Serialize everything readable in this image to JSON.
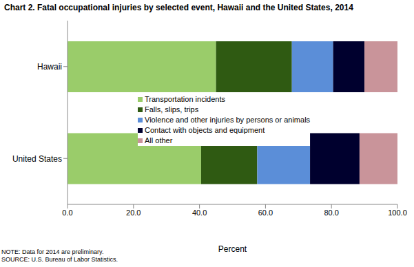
{
  "chart_data": {
    "type": "bar",
    "title": "Chart 2. Fatal occupational injuries by selected event, Hawaii and the United States, 2014",
    "orientation": "horizontal",
    "stacked": true,
    "grid": false,
    "legend": "center",
    "categories": [
      "Hawaii",
      "United States"
    ],
    "series": [
      {
        "name": "Transportation incidents",
        "color": "#9acc6a",
        "values": [
          45,
          40.5
        ]
      },
      {
        "name": "Falls, slips, trips",
        "color": "#2f5a12",
        "values": [
          23,
          17
        ]
      },
      {
        "name": "Violence and other injuries by persons or animals",
        "color": "#5b8ed8",
        "values": [
          12.5,
          16
        ]
      },
      {
        "name": "Contact with objects and equipment",
        "color": "#00002e",
        "values": [
          9.5,
          15
        ]
      },
      {
        "name": "All other",
        "color": "#c9949a",
        "values": [
          10,
          11.5
        ]
      }
    ],
    "x_label": "Percent",
    "xlim": [
      0,
      100
    ],
    "xticks": [
      {
        "value": 0,
        "label": "0.0"
      },
      {
        "value": 20,
        "label": "20.0"
      },
      {
        "value": 40,
        "label": "40.0"
      },
      {
        "value": 60,
        "label": "60.0"
      },
      {
        "value": 80,
        "label": "80.0"
      },
      {
        "value": 100,
        "label": "100.0"
      }
    ],
    "annotations": [
      "NOTE: Data for 2014 are preliminary.",
      "SOURCE: U.S. Bureau of Labor Statistics."
    ]
  }
}
